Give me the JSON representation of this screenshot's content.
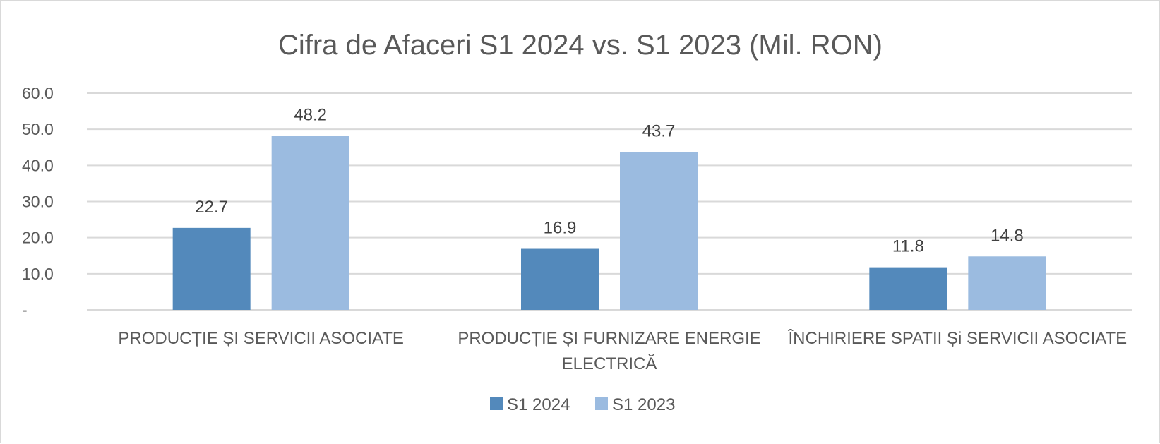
{
  "chart_data": {
    "type": "bar",
    "title": "Cifra de Afaceri S1 2024 vs. S1 2023 (Mil. RON)",
    "categories": [
      [
        "PRODUCȚIE ȘI SERVICII ASOCIATE"
      ],
      [
        "PRODUCȚIE ȘI FURNIZARE ENERGIE",
        "ELECTRICĂ"
      ],
      [
        "ÎNCHIRIERE SPATII Și SERVICII ASOCIATE"
      ]
    ],
    "series": [
      {
        "name": "S1 2024",
        "values": [
          22.7,
          16.9,
          11.8
        ],
        "labels": [
          "22.7",
          "16.9",
          "11.8"
        ],
        "color": "#5389bb"
      },
      {
        "name": "S1 2023",
        "values": [
          48.2,
          43.7,
          14.8
        ],
        "labels": [
          "48.2",
          "43.7",
          "14.8"
        ],
        "color": "#9bbbe0"
      }
    ],
    "ylim": [
      0,
      60
    ],
    "yticks": [
      0,
      10,
      20,
      30,
      40,
      50,
      60
    ],
    "ytick_labels": [
      "-",
      "10.0",
      "20.0",
      "30.0",
      "40.0",
      "50.0",
      "60.0"
    ],
    "grid": true,
    "gridline_color": "#d9d9d9",
    "legend_position": "bottom"
  }
}
